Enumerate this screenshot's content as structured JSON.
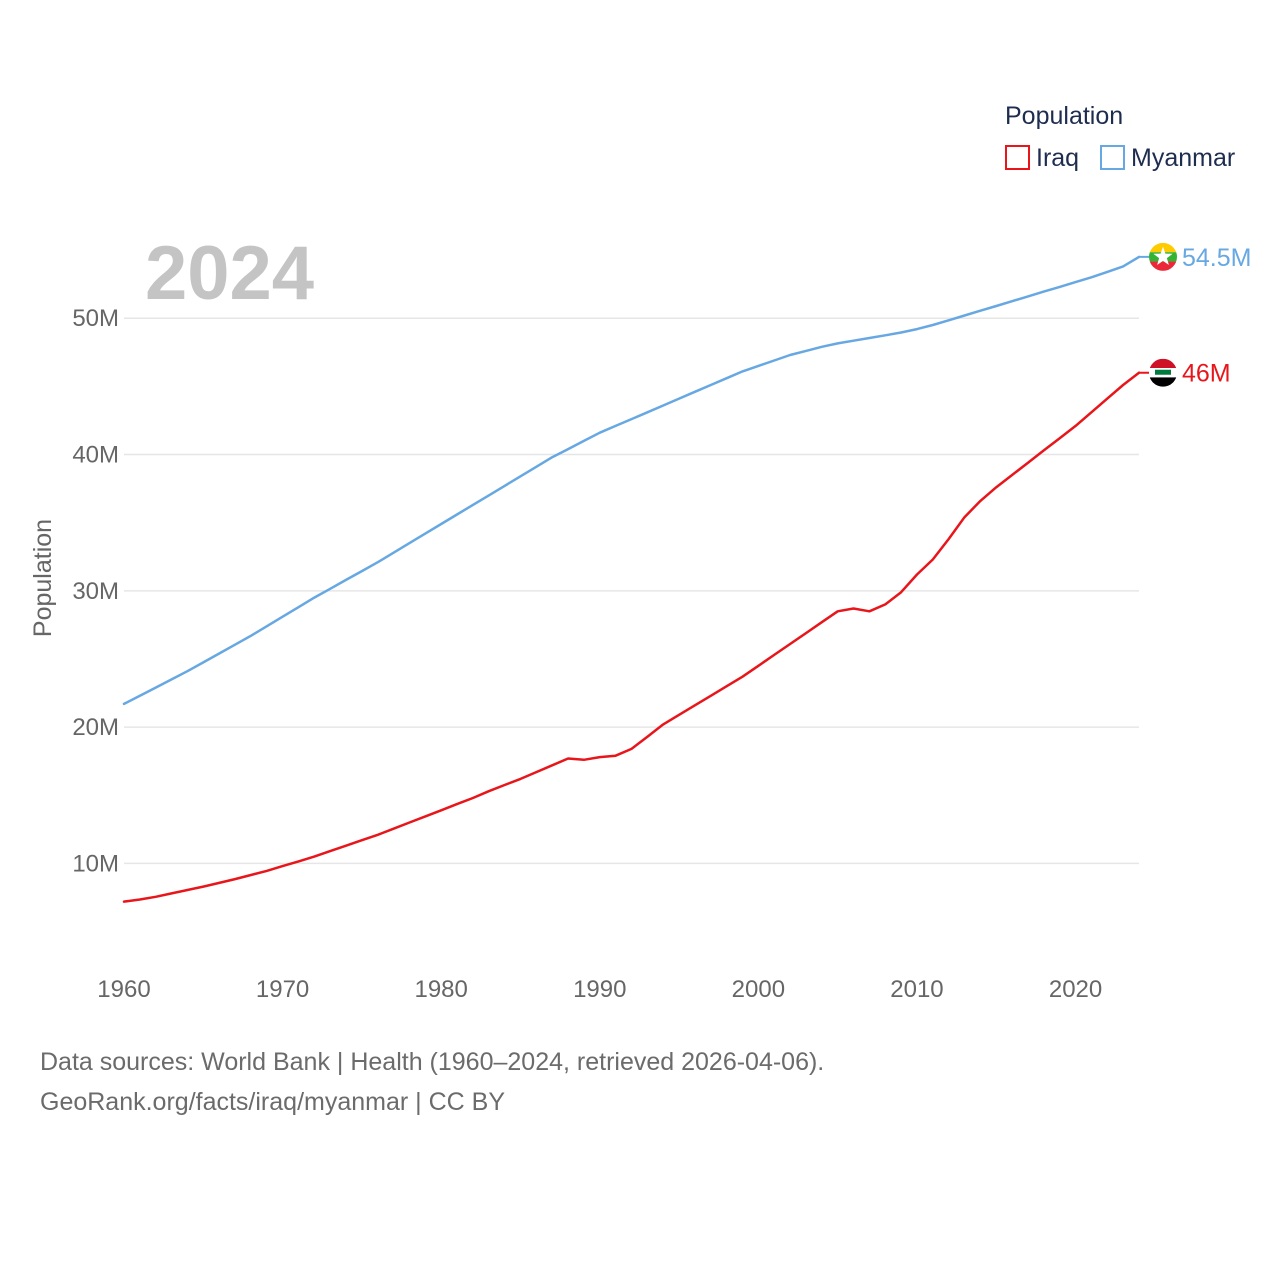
{
  "chart_data": {
    "type": "line",
    "title": "",
    "current_year_label": "2024",
    "ylabel": "Population",
    "xlabel": "",
    "xlim": [
      1960,
      2024
    ],
    "ylim": [
      3.5,
      57.5
    ],
    "x_ticks": [
      1960,
      1970,
      1980,
      1990,
      2000,
      2010,
      2020
    ],
    "y_ticks": [
      {
        "value": 10,
        "label": "10M"
      },
      {
        "value": 20,
        "label": "20M"
      },
      {
        "value": 30,
        "label": "30M"
      },
      {
        "value": 40,
        "label": "40M"
      },
      {
        "value": 50,
        "label": "50M"
      }
    ],
    "legend": {
      "title": "Population",
      "position": "top-right"
    },
    "x": [
      1960,
      1961,
      1962,
      1963,
      1964,
      1965,
      1966,
      1967,
      1968,
      1969,
      1970,
      1971,
      1972,
      1973,
      1974,
      1975,
      1976,
      1977,
      1978,
      1979,
      1980,
      1981,
      1982,
      1983,
      1984,
      1985,
      1986,
      1987,
      1988,
      1989,
      1990,
      1991,
      1992,
      1993,
      1994,
      1995,
      1996,
      1997,
      1998,
      1999,
      2000,
      2001,
      2002,
      2003,
      2004,
      2005,
      2006,
      2007,
      2008,
      2009,
      2010,
      2011,
      2012,
      2013,
      2014,
      2015,
      2016,
      2017,
      2018,
      2019,
      2020,
      2021,
      2022,
      2023,
      2024
    ],
    "series": [
      {
        "name": "Iraq",
        "color": "#e8161b",
        "end_label": "46M",
        "flag": "iraq",
        "values": [
          7.2,
          7.35,
          7.55,
          7.8,
          8.05,
          8.3,
          8.57,
          8.85,
          9.15,
          9.45,
          9.8,
          10.15,
          10.5,
          10.9,
          11.3,
          11.7,
          12.1,
          12.55,
          13.0,
          13.45,
          13.9,
          14.35,
          14.8,
          15.3,
          15.75,
          16.2,
          16.7,
          17.2,
          17.7,
          17.6,
          17.8,
          17.9,
          18.4,
          19.3,
          20.2,
          20.9,
          21.6,
          22.3,
          23.0,
          23.7,
          24.5,
          25.3,
          26.1,
          26.9,
          27.7,
          28.5,
          28.7,
          28.5,
          29.0,
          29.9,
          31.2,
          32.3,
          33.8,
          35.4,
          36.6,
          37.6,
          38.5,
          39.4,
          40.3,
          41.2,
          42.1,
          43.1,
          44.1,
          45.1,
          46.0
        ]
      },
      {
        "name": "Myanmar",
        "color": "#67a8e3",
        "end_label": "54.5M",
        "flag": "myanmar",
        "values": [
          21.7,
          22.3,
          22.9,
          23.5,
          24.1,
          24.75,
          25.4,
          26.05,
          26.7,
          27.4,
          28.1,
          28.8,
          29.5,
          30.15,
          30.8,
          31.45,
          32.1,
          32.8,
          33.5,
          34.2,
          34.9,
          35.6,
          36.3,
          37.0,
          37.7,
          38.4,
          39.1,
          39.8,
          40.4,
          41.0,
          41.6,
          42.1,
          42.6,
          43.1,
          43.6,
          44.1,
          44.6,
          45.1,
          45.6,
          46.1,
          46.5,
          46.9,
          47.3,
          47.6,
          47.9,
          48.15,
          48.35,
          48.55,
          48.75,
          48.95,
          49.2,
          49.5,
          49.85,
          50.2,
          50.55,
          50.9,
          51.25,
          51.6,
          51.95,
          52.3,
          52.65,
          53.0,
          53.4,
          53.8,
          54.5
        ]
      }
    ]
  },
  "footer": {
    "line1": "Data sources: World Bank | Health (1960–2024, retrieved 2026-04-06).",
    "line2": "GeoRank.org/facts/iraq/myanmar | CC BY"
  }
}
